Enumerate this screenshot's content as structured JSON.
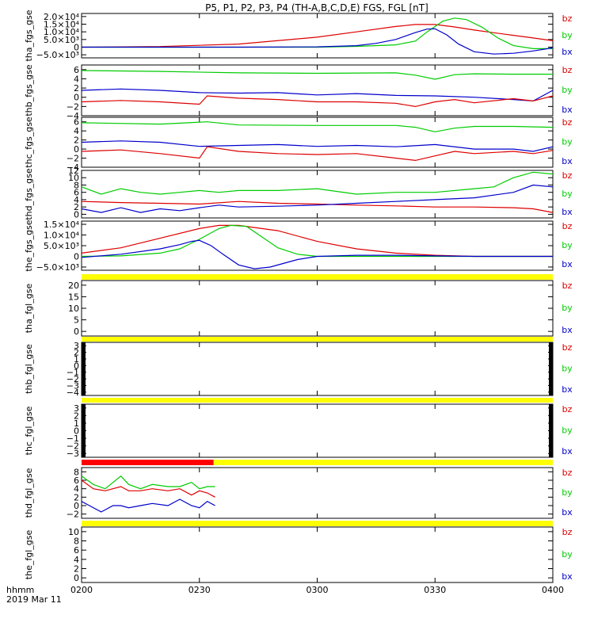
{
  "title": "P5, P1, P2, P3, P4 (TH-A,B,C,D,E) FGS, FGL [nT]",
  "colors": {
    "bz": "#dd0000",
    "by": "#00cc00",
    "bx": "#0000cc",
    "status_ok": "#ffff00",
    "status_bad": "#ff0000"
  },
  "time_axis": {
    "ticks": [
      "0200",
      "0230",
      "0300",
      "0330",
      "0400"
    ],
    "tick_minutes": [
      0,
      30,
      60,
      90,
      120
    ],
    "range_minutes": [
      0,
      120
    ],
    "label_line1": "hhmm",
    "label_line2": "2019 Mar 11"
  },
  "chart_data": [
    {
      "type": "line",
      "ylabel": "tha_fgs_gse",
      "ylim": [
        -7000,
        22000
      ],
      "yticks": [
        -5000,
        0,
        5000,
        10000,
        15000,
        20000
      ],
      "yticklabels": [
        "−5.0×10³",
        "0",
        "5.0×10³",
        "1.0×10⁴",
        "1.5×10⁴",
        "2.0×10⁴"
      ],
      "series": [
        {
          "name": "bz",
          "x": [
            0,
            20,
            40,
            60,
            70,
            80,
            85,
            90,
            95,
            100,
            105,
            110,
            115,
            120
          ],
          "y": [
            0,
            400,
            2000,
            6500,
            10000,
            13500,
            14800,
            14800,
            13200,
            11200,
            9400,
            7700,
            6000,
            4200
          ]
        },
        {
          "name": "by",
          "x": [
            0,
            20,
            40,
            60,
            70,
            80,
            85,
            88,
            92,
            95,
            98,
            102,
            106,
            110,
            115,
            120
          ],
          "y": [
            0,
            0,
            0,
            0,
            500,
            1500,
            4000,
            10000,
            17000,
            19000,
            18000,
            13000,
            6000,
            1000,
            -1000,
            -1000
          ]
        },
        {
          "name": "bx",
          "x": [
            0,
            20,
            40,
            60,
            70,
            75,
            80,
            85,
            88,
            90,
            93,
            96,
            100,
            105,
            110,
            115,
            120
          ],
          "y": [
            0,
            0,
            0,
            200,
            1000,
            2500,
            5000,
            9500,
            11800,
            12000,
            8000,
            2000,
            -3000,
            -4500,
            -4000,
            -2500,
            -500
          ]
        }
      ]
    },
    {
      "type": "line",
      "ylabel": "thb_fgs_gse",
      "ylim": [
        -4,
        7
      ],
      "yticks": [
        -4,
        -2,
        0,
        2,
        4,
        6
      ],
      "yticklabels": [
        "−4",
        "−2",
        "0",
        "2",
        "4",
        "6"
      ],
      "series": [
        {
          "name": "by",
          "x": [
            0,
            20,
            40,
            60,
            80,
            85,
            90,
            95,
            100,
            110,
            120
          ],
          "y": [
            5.8,
            5.6,
            5.3,
            5.2,
            5.3,
            4.8,
            3.9,
            4.9,
            5.1,
            5.0,
            5.0
          ]
        },
        {
          "name": "bx",
          "x": [
            0,
            10,
            20,
            30,
            40,
            50,
            60,
            70,
            80,
            90,
            100,
            110,
            115,
            120
          ],
          "y": [
            1.5,
            1.8,
            1.5,
            1.0,
            0.9,
            1.0,
            0.5,
            0.8,
            0.4,
            0.3,
            0.0,
            -0.5,
            -0.8,
            1.5
          ]
        },
        {
          "name": "bz",
          "x": [
            0,
            10,
            20,
            30,
            32,
            40,
            50,
            60,
            70,
            80,
            85,
            90,
            95,
            100,
            110,
            115,
            120
          ],
          "y": [
            -1.0,
            -0.7,
            -1.0,
            -1.5,
            0.3,
            -0.2,
            -0.5,
            -1.0,
            -1.0,
            -1.3,
            -2.0,
            -1.0,
            -0.5,
            -1.2,
            -0.3,
            -0.8,
            0.3
          ]
        }
      ]
    },
    {
      "type": "line",
      "ylabel": "thc_fgs_gse",
      "ylim": [
        -4,
        7
      ],
      "yticks": [
        -4,
        -2,
        0,
        2,
        4,
        6
      ],
      "yticklabels": [
        "−4",
        "−2",
        "0",
        "2",
        "4",
        "6"
      ],
      "series": [
        {
          "name": "by",
          "x": [
            0,
            20,
            32,
            40,
            60,
            80,
            85,
            90,
            95,
            100,
            110,
            120
          ],
          "y": [
            5.8,
            5.5,
            6.0,
            5.3,
            5.2,
            5.2,
            4.8,
            3.8,
            4.6,
            5.0,
            5.0,
            4.8
          ]
        },
        {
          "name": "bx",
          "x": [
            0,
            10,
            20,
            30,
            40,
            50,
            60,
            70,
            80,
            90,
            100,
            110,
            115,
            120
          ],
          "y": [
            1.5,
            1.8,
            1.5,
            0.6,
            0.8,
            1.0,
            0.6,
            0.8,
            0.5,
            1.0,
            0.0,
            0.0,
            -0.5,
            0.5
          ]
        },
        {
          "name": "bz",
          "x": [
            0,
            10,
            20,
            30,
            32,
            40,
            50,
            60,
            70,
            80,
            85,
            90,
            95,
            100,
            110,
            115,
            120
          ],
          "y": [
            -0.5,
            -0.2,
            -1.0,
            -2.0,
            0.5,
            -0.5,
            -1.0,
            -1.2,
            -1.0,
            -2.0,
            -2.5,
            -1.5,
            -0.5,
            -1.0,
            -0.5,
            -1.0,
            -0.3
          ]
        }
      ]
    },
    {
      "type": "line",
      "ylabel": "thd_fgs_gse",
      "ylim": [
        -1,
        12
      ],
      "yticks": [
        0,
        2,
        4,
        6,
        8,
        10,
        12
      ],
      "yticklabels": [
        "0",
        "2",
        "4",
        "6",
        "8",
        "10",
        "12"
      ],
      "series": [
        {
          "name": "by",
          "x": [
            0,
            5,
            10,
            15,
            20,
            25,
            30,
            35,
            40,
            50,
            60,
            70,
            80,
            90,
            100,
            105,
            110,
            115,
            120
          ],
          "y": [
            7.5,
            5.5,
            7.0,
            6.0,
            5.5,
            6.0,
            6.5,
            6.0,
            6.5,
            6.5,
            7.0,
            5.5,
            6.0,
            6.0,
            7.0,
            7.5,
            10.0,
            11.5,
            11.0
          ]
        },
        {
          "name": "bz",
          "x": [
            0,
            10,
            20,
            30,
            40,
            50,
            60,
            70,
            80,
            90,
            100,
            110,
            115,
            120
          ],
          "y": [
            3.5,
            3.2,
            3.0,
            2.8,
            3.5,
            3.0,
            2.8,
            2.5,
            2.3,
            2.0,
            2.0,
            1.8,
            1.5,
            0.5
          ]
        },
        {
          "name": "bx",
          "x": [
            0,
            5,
            10,
            15,
            20,
            25,
            30,
            35,
            40,
            50,
            60,
            70,
            80,
            90,
            100,
            110,
            115,
            120
          ],
          "y": [
            1.5,
            0.5,
            1.8,
            0.5,
            1.5,
            1.0,
            1.8,
            2.5,
            2.0,
            2.2,
            2.5,
            3.0,
            3.5,
            4.0,
            4.5,
            6.0,
            8.0,
            7.5
          ]
        }
      ]
    },
    {
      "type": "line",
      "ylabel": "the_fgs_gse",
      "ylim": [
        -6500,
        16500
      ],
      "yticks": [
        -5000,
        0,
        5000,
        10000,
        15000
      ],
      "yticklabels": [
        "−5.0×10³",
        "0",
        "5.0×10³",
        "1.0×10⁴",
        "1.5×10⁴"
      ],
      "series": [
        {
          "name": "bz",
          "x": [
            0,
            10,
            20,
            30,
            35,
            40,
            50,
            60,
            70,
            80,
            90,
            100,
            110,
            120
          ],
          "y": [
            1500,
            4000,
            8500,
            13000,
            14500,
            14500,
            12000,
            7000,
            3500,
            1500,
            500,
            0,
            0,
            0
          ]
        },
        {
          "name": "by",
          "x": [
            0,
            10,
            20,
            25,
            30,
            35,
            38,
            42,
            46,
            50,
            55,
            60,
            70,
            80,
            90,
            100,
            110,
            120
          ],
          "y": [
            0,
            200,
            1500,
            3500,
            8000,
            13000,
            14500,
            14000,
            9000,
            4000,
            1000,
            0,
            0,
            0,
            0,
            0,
            0,
            0
          ]
        },
        {
          "name": "bx",
          "x": [
            0,
            10,
            20,
            25,
            28,
            30,
            33,
            36,
            40,
            44,
            48,
            55,
            60,
            70,
            80,
            90,
            100,
            110,
            120
          ],
          "y": [
            -500,
            1000,
            3500,
            5500,
            7000,
            7500,
            5000,
            1000,
            -4000,
            -5800,
            -5000,
            -1500,
            0,
            500,
            500,
            200,
            0,
            0,
            0
          ]
        }
      ]
    },
    {
      "type": "line",
      "ylabel": "tha_fgl_gse",
      "ylim": [
        -2,
        22
      ],
      "yticks": [
        0,
        5,
        10,
        15,
        20
      ],
      "yticklabels": [
        "0",
        "5",
        "10",
        "15",
        "20"
      ],
      "series": []
    },
    {
      "type": "line",
      "ylabel": "thb_fgl_gse",
      "ylim": [
        -4.5,
        3.5
      ],
      "yticks": [
        -4,
        -3,
        -2,
        -1,
        0,
        1,
        2,
        3
      ],
      "yticklabels": [
        "−4",
        "−3",
        "−2",
        "−1",
        "0",
        "1",
        "2",
        "3"
      ],
      "series": []
    },
    {
      "type": "line",
      "ylabel": "thc_fgl_gse",
      "ylim": [
        -3.5,
        3.5
      ],
      "yticks": [
        -3,
        -2,
        -1,
        0,
        1,
        2,
        3
      ],
      "yticklabels": [
        "−3",
        "−2",
        "−1",
        "0",
        "1",
        "2",
        "3"
      ],
      "series": []
    },
    {
      "type": "line",
      "ylabel": "thd_fgl_gse",
      "ylim": [
        -3,
        9
      ],
      "yticks": [
        -2,
        0,
        2,
        4,
        6,
        8
      ],
      "yticklabels": [
        "−2",
        "0",
        "2",
        "4",
        "6",
        "8"
      ],
      "series": [
        {
          "name": "by",
          "x": [
            0,
            3,
            6,
            10,
            12,
            15,
            18,
            22,
            25,
            28,
            30,
            32,
            34
          ],
          "y": [
            7,
            5,
            4,
            7,
            5,
            4,
            5,
            4.5,
            4.5,
            5.5,
            4,
            4.5,
            4.5
          ]
        },
        {
          "name": "bz",
          "x": [
            0,
            3,
            6,
            10,
            12,
            15,
            18,
            22,
            25,
            28,
            30,
            32,
            34
          ],
          "y": [
            6,
            4,
            3.5,
            4.5,
            3.5,
            3.5,
            4,
            3.5,
            4,
            2.5,
            3.5,
            3,
            2
          ]
        },
        {
          "name": "bx",
          "x": [
            0,
            2,
            5,
            8,
            10,
            12,
            15,
            18,
            22,
            25,
            28,
            30,
            32,
            34
          ],
          "y": [
            1,
            0,
            -1.5,
            0,
            0,
            -0.5,
            0,
            0.5,
            0,
            1.5,
            0,
            -0.5,
            1,
            0
          ]
        }
      ]
    },
    {
      "type": "line",
      "ylabel": "the_fgl_gse",
      "ylim": [
        -1,
        11
      ],
      "yticks": [
        0,
        2,
        4,
        6,
        8,
        10
      ],
      "yticklabels": [
        "0",
        "2",
        "4",
        "6",
        "8",
        "10"
      ],
      "series": []
    }
  ]
}
